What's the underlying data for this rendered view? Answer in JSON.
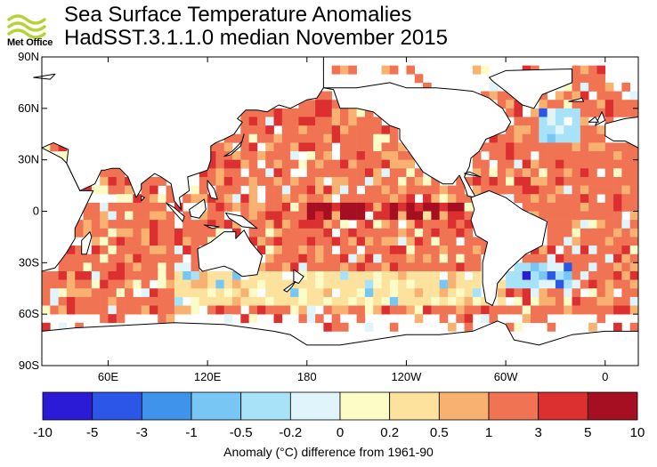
{
  "brand": {
    "name": "Met Office",
    "logo_icon": "met-office-swirl-icon",
    "logo_color": "#b5d334"
  },
  "title": "Sea Surface Temperature Anomalies",
  "subtitle": "HadSST.3.1.1.0 median November 2015",
  "map": {
    "projection": "equirectangular",
    "lon_range": [
      20,
      380
    ],
    "lat_range": [
      -90,
      90
    ],
    "lat_ticks": [
      {
        "value": 90,
        "label": "90N"
      },
      {
        "value": 60,
        "label": "60N"
      },
      {
        "value": 30,
        "label": "30N"
      },
      {
        "value": 0,
        "label": "0"
      },
      {
        "value": -30,
        "label": "30S"
      },
      {
        "value": -60,
        "label": "60S"
      },
      {
        "value": -90,
        "label": "90S"
      }
    ],
    "lon_ticks": [
      {
        "value": 60,
        "label": "60E"
      },
      {
        "value": 120,
        "label": "120E"
      },
      {
        "value": 180,
        "label": "180"
      },
      {
        "value": 240,
        "label": "120W"
      },
      {
        "value": 300,
        "label": "60W"
      },
      {
        "value": 360,
        "label": "0"
      }
    ],
    "land_color": "#ffffff",
    "coast_color": "#000000"
  },
  "colorbar": {
    "labels": [
      "-10",
      "-5",
      "-3",
      "-1",
      "-0.5",
      "-0.2",
      "0",
      "0.2",
      "0.5",
      "1",
      "3",
      "5",
      "10"
    ],
    "colors": [
      "#2b1bd6",
      "#2b56e8",
      "#3f93eb",
      "#77c6f4",
      "#a8e2f8",
      "#dff5fb",
      "#fdfbc6",
      "#fce29c",
      "#f8b171",
      "#f07454",
      "#dc2f2f",
      "#a50f21"
    ],
    "title": "Anomaly (°C) difference from 1961-90"
  },
  "chart_data": {
    "type": "heatmap",
    "title": "Sea Surface Temperature Anomalies",
    "subtitle": "HadSST.3.1.1.0 median November 2015",
    "grid": "5-degree cells (approximate)",
    "colorbar_bounds": [
      -10,
      -5,
      -3,
      -1,
      -0.5,
      -0.2,
      0,
      0.2,
      0.5,
      1,
      3,
      5,
      10
    ],
    "regions": [
      {
        "lon": [
          180,
          275
        ],
        "lat": [
          -5,
          5
        ],
        "category": 11
      },
      {
        "lon": [
          150,
          250
        ],
        "lat": [
          5,
          30
        ],
        "category": 9
      },
      {
        "lon": [
          160,
          235
        ],
        "lat": [
          30,
          55
        ],
        "category": 9
      },
      {
        "lon": [
          60,
          100
        ],
        "lat": [
          -25,
          10
        ],
        "category": 9
      },
      {
        "lon": [
          320,
          345
        ],
        "lat": [
          40,
          60
        ],
        "category": 4
      },
      {
        "lon": [
          300,
          340
        ],
        "lat": [
          -45,
          -30
        ],
        "category": 4
      },
      {
        "lon": [
          100,
          300
        ],
        "lat": [
          -55,
          -35
        ],
        "category": 7
      }
    ]
  }
}
